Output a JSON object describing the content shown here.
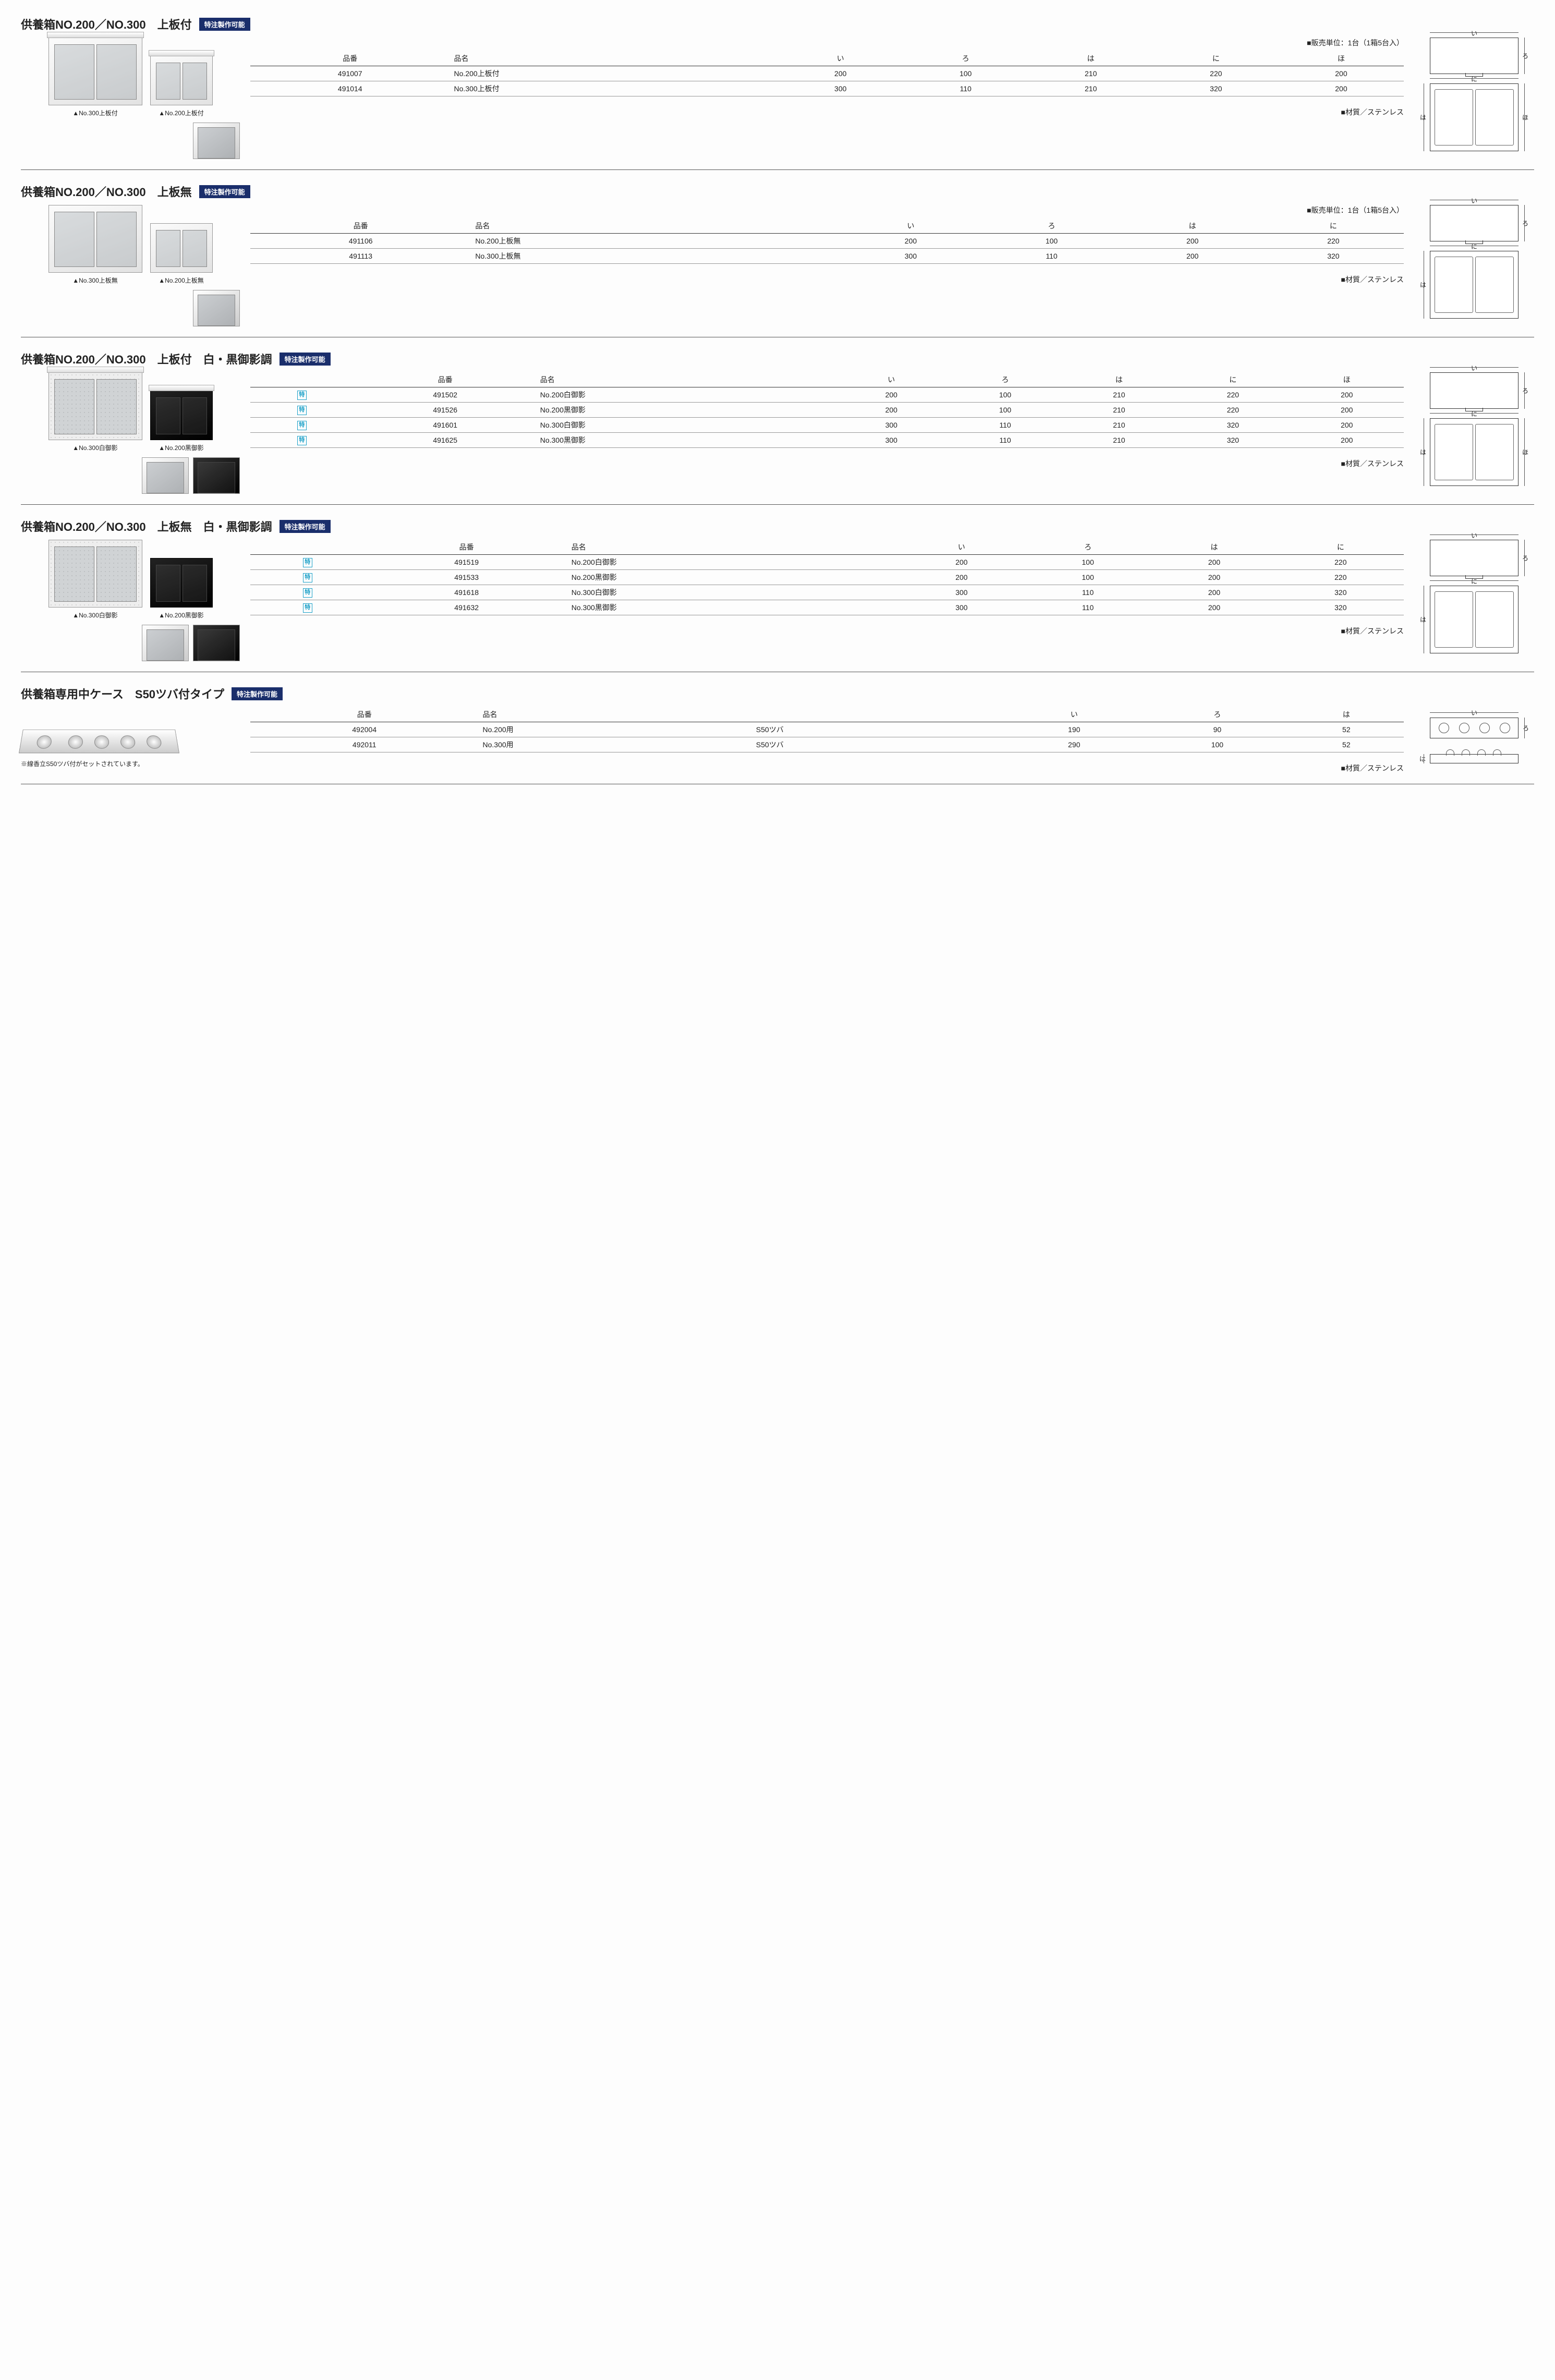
{
  "badge": "特注製作可能",
  "toku": "特",
  "sections": [
    {
      "title": "供養箱NO.200／NO.300　上板付",
      "salesUnit": "■販売単位：1台（1箱5台入）",
      "captions": [
        "▲No.300上板付",
        "▲No.200上板付"
      ],
      "hasTop": true,
      "stone": false,
      "cols": [
        "品番",
        "品名",
        "い",
        "ろ",
        "は",
        "に",
        "ほ"
      ],
      "rows": [
        {
          "code": "491007",
          "name": "No.200上板付",
          "d": [
            "200",
            "100",
            "210",
            "220",
            "200"
          ]
        },
        {
          "code": "491014",
          "name": "No.300上板付",
          "d": [
            "300",
            "110",
            "210",
            "320",
            "200"
          ]
        }
      ],
      "material": "■材質／ステンレス",
      "diagDims": [
        "い",
        "ろ",
        "に",
        "は",
        "ほ"
      ],
      "hasHo": true
    },
    {
      "title": "供養箱NO.200／NO.300　上板無",
      "salesUnit": "■販売単位：1台（1箱5台入）",
      "captions": [
        "▲No.300上板無",
        "▲No.200上板無"
      ],
      "hasTop": false,
      "stone": false,
      "cols": [
        "品番",
        "品名",
        "い",
        "ろ",
        "は",
        "に"
      ],
      "rows": [
        {
          "code": "491106",
          "name": "No.200上板無",
          "d": [
            "200",
            "100",
            "200",
            "220"
          ]
        },
        {
          "code": "491113",
          "name": "No.300上板無",
          "d": [
            "300",
            "110",
            "200",
            "320"
          ]
        }
      ],
      "material": "■材質／ステンレス",
      "diagDims": [
        "い",
        "ろ",
        "に",
        "は"
      ],
      "hasHo": false
    },
    {
      "title": "供養箱NO.200／NO.300　上板付　白・黒御影調",
      "salesUnit": "",
      "captions": [
        "▲No.300白御影",
        "▲No.200黒御影"
      ],
      "hasTop": true,
      "stone": true,
      "cols": [
        "品番",
        "品名",
        "い",
        "ろ",
        "は",
        "に",
        "ほ"
      ],
      "toku": true,
      "rows": [
        {
          "code": "491502",
          "name": "No.200白御影",
          "d": [
            "200",
            "100",
            "210",
            "220",
            "200"
          ]
        },
        {
          "code": "491526",
          "name": "No.200黒御影",
          "d": [
            "200",
            "100",
            "210",
            "220",
            "200"
          ]
        },
        {
          "code": "491601",
          "name": "No.300白御影",
          "d": [
            "300",
            "110",
            "210",
            "320",
            "200"
          ]
        },
        {
          "code": "491625",
          "name": "No.300黒御影",
          "d": [
            "300",
            "110",
            "210",
            "320",
            "200"
          ]
        }
      ],
      "material": "■材質／ステンレス",
      "diagDims": [
        "い",
        "ろ",
        "に",
        "は",
        "ほ"
      ],
      "hasHo": true
    },
    {
      "title": "供養箱NO.200／NO.300　上板無　白・黒御影調",
      "salesUnit": "",
      "captions": [
        "▲No.300白御影",
        "▲No.200黒御影"
      ],
      "hasTop": false,
      "stone": true,
      "cols": [
        "品番",
        "品名",
        "い",
        "ろ",
        "は",
        "に"
      ],
      "toku": true,
      "rows": [
        {
          "code": "491519",
          "name": "No.200白御影",
          "d": [
            "200",
            "100",
            "200",
            "220"
          ]
        },
        {
          "code": "491533",
          "name": "No.200黒御影",
          "d": [
            "200",
            "100",
            "200",
            "220"
          ]
        },
        {
          "code": "491618",
          "name": "No.300白御影",
          "d": [
            "300",
            "110",
            "200",
            "320"
          ]
        },
        {
          "code": "491632",
          "name": "No.300黒御影",
          "d": [
            "300",
            "110",
            "200",
            "320"
          ]
        }
      ],
      "material": "■材質／ステンレス",
      "diagDims": [
        "い",
        "ろ",
        "に",
        "は"
      ],
      "hasHo": false
    }
  ],
  "section5": {
    "title": "供養箱専用中ケース　S50ツバ付タイプ",
    "cols": [
      "品番",
      "品名",
      "",
      "い",
      "ろ",
      "は"
    ],
    "rows": [
      {
        "code": "492004",
        "name": "No.200用",
        "sub": "S50ツバ",
        "d": [
          "190",
          "90",
          "52"
        ]
      },
      {
        "code": "492011",
        "name": "No.300用",
        "sub": "S50ツバ",
        "d": [
          "290",
          "100",
          "52"
        ]
      }
    ],
    "note": "※線香立S50ツバ付がセットされています。",
    "material": "■材質／ステンレス",
    "diagDims": [
      "い",
      "ろ",
      "は"
    ]
  }
}
